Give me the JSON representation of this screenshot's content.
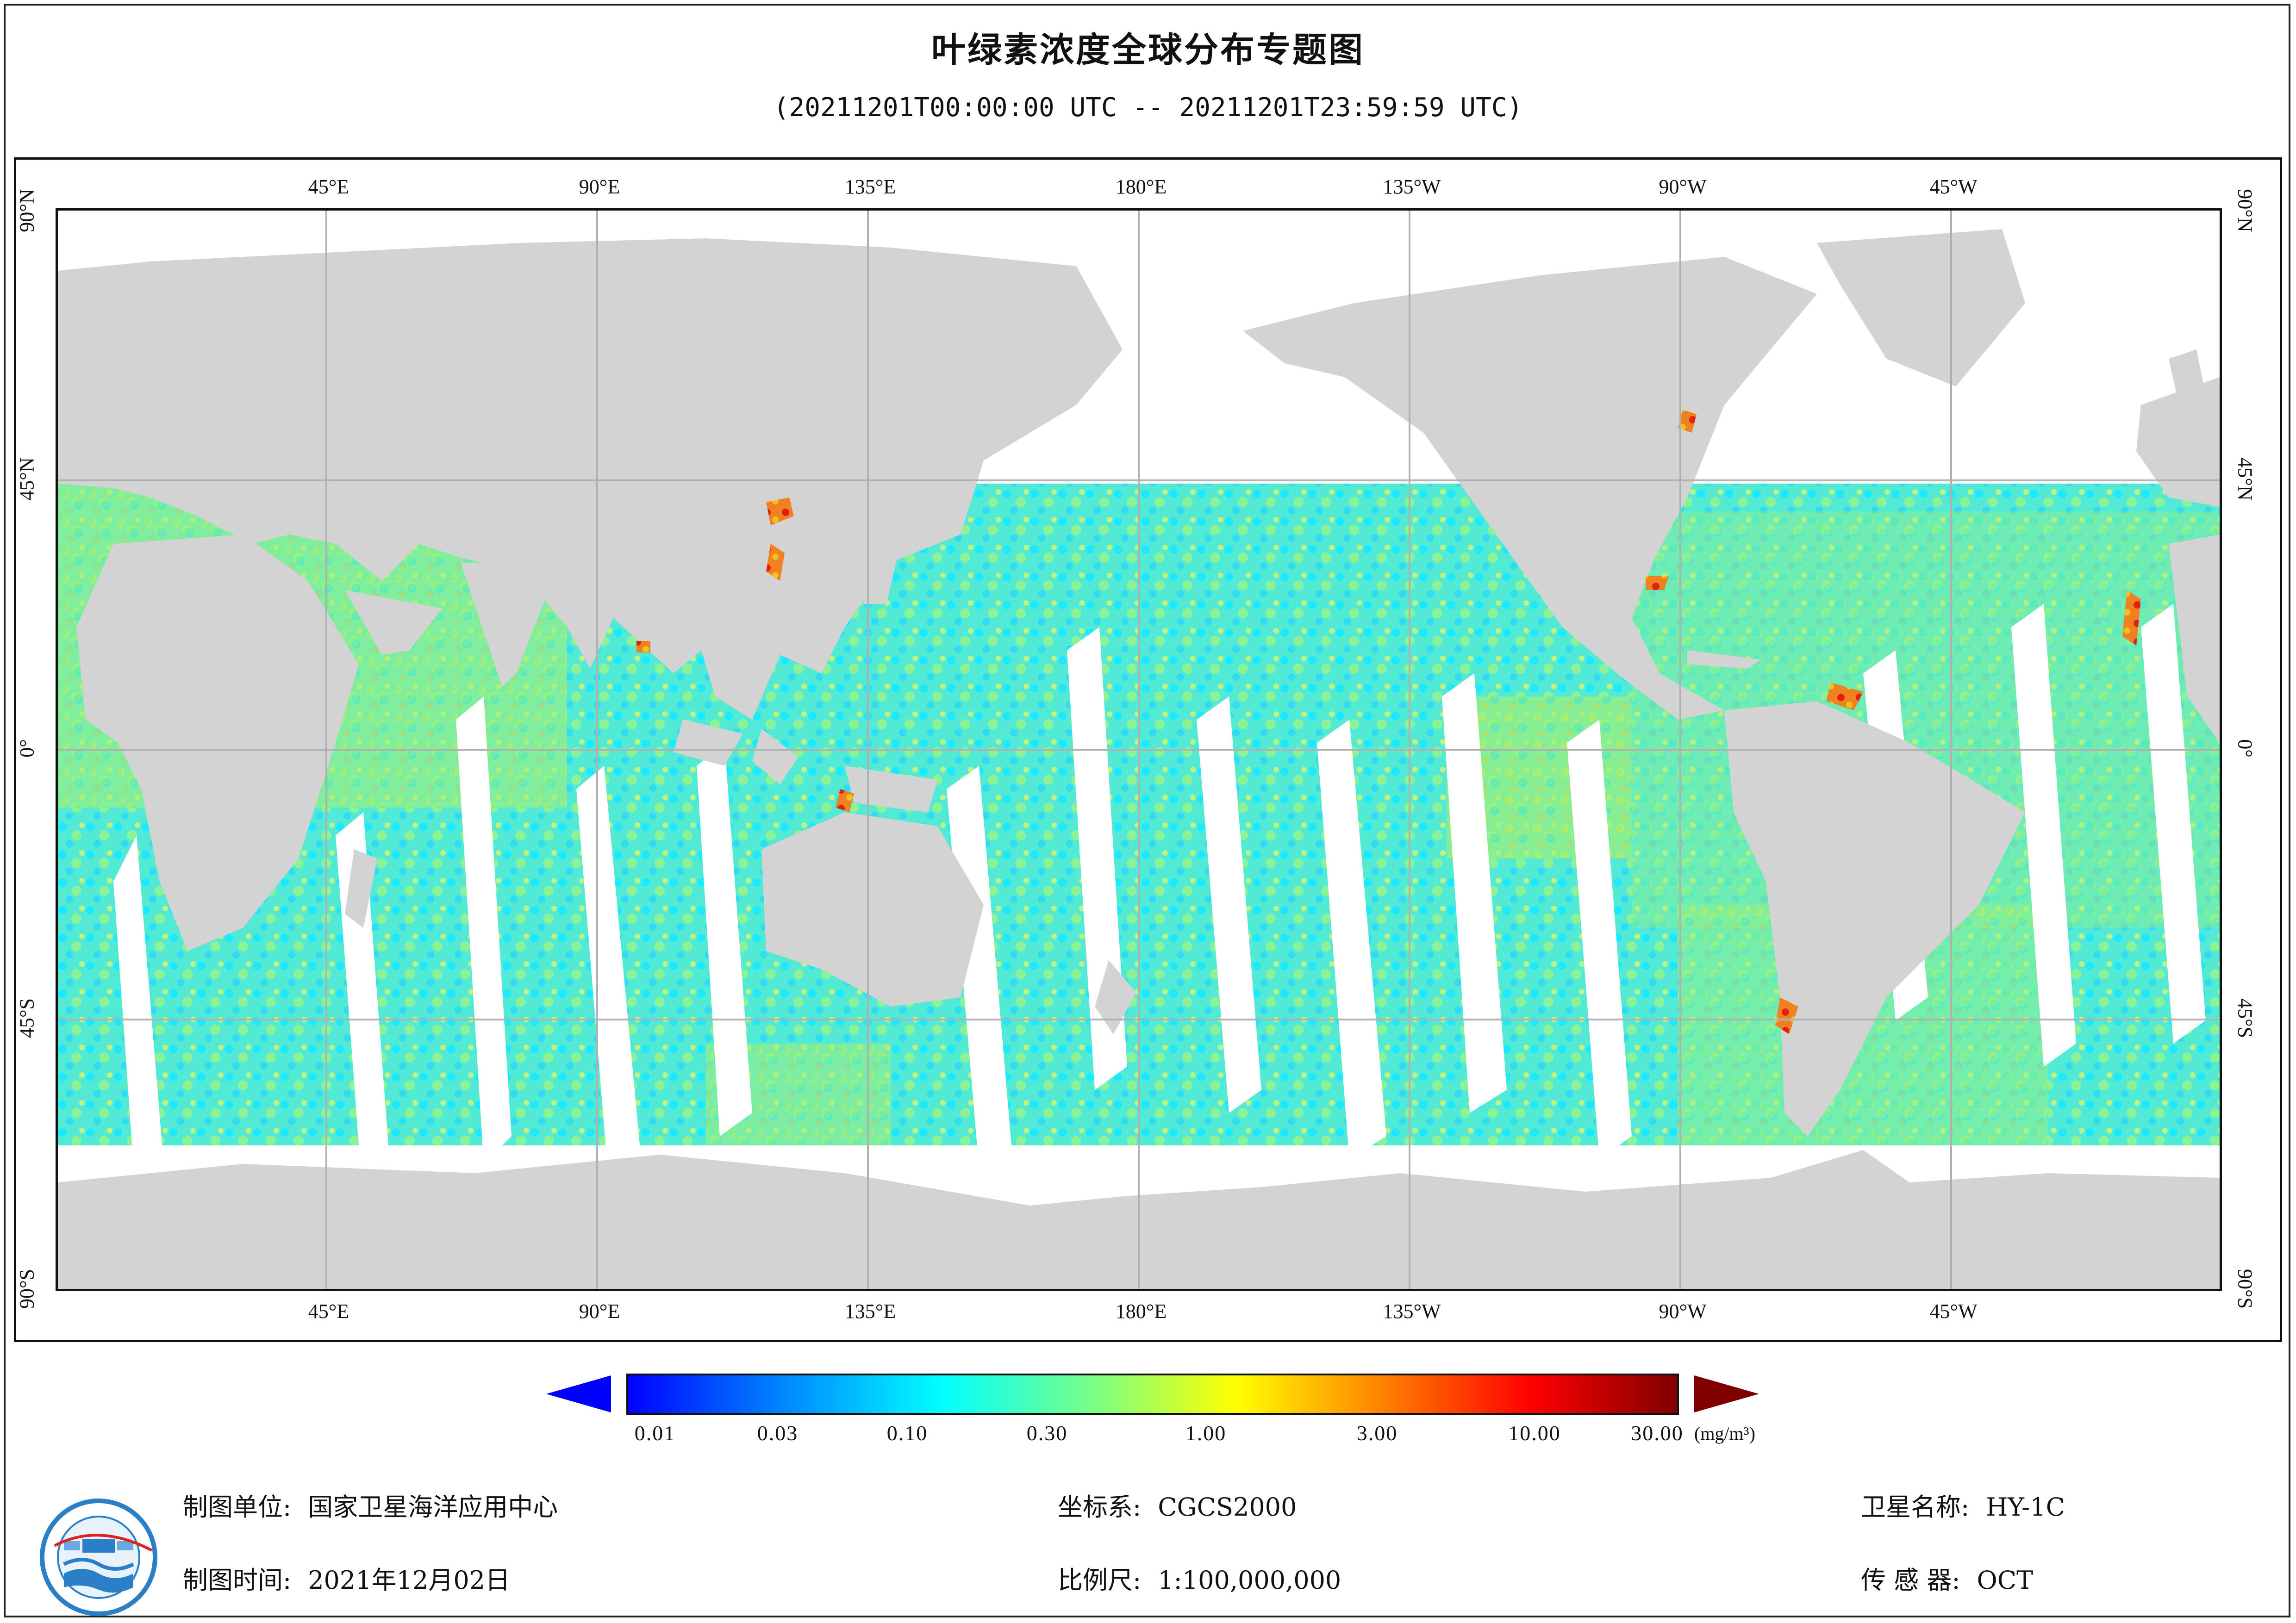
{
  "title": "叶绿素浓度全球分布专题图",
  "subtitle": "(20211201T00:00:00 UTC -- 20211201T23:59:59 UTC)",
  "map": {
    "longitude_ticks_top": [
      "45°E",
      "90°E",
      "135°E",
      "180°E",
      "135°W",
      "90°W",
      "45°W"
    ],
    "longitude_ticks_bottom": [
      "45°E",
      "90°E",
      "135°E",
      "180°E",
      "135°W",
      "90°W",
      "45°W"
    ],
    "latitude_ticks_left": [
      "90°N",
      "45°N",
      "0°",
      "45°S",
      "90°S"
    ],
    "latitude_ticks_right": [
      "90°N",
      "45°N",
      "0°",
      "45°S",
      "90°S"
    ],
    "central_meridian": "180°",
    "land_color": "#d3d3d3",
    "ocean_nodata_color": "#ffffff",
    "grid_color": "#b0b0b0"
  },
  "colorbar": {
    "scale": "log",
    "tick_labels": [
      "0.01",
      "0.03",
      "0.10",
      "0.30",
      "1.00",
      "3.00",
      "10.00",
      "30.00"
    ],
    "unit_label": "(mg/m³)",
    "colors": [
      "#0000ff",
      "#0080ff",
      "#00ffff",
      "#80ff80",
      "#ffff00",
      "#ff8000",
      "#ff0000",
      "#800000"
    ],
    "under_color": "#0000ff",
    "over_color": "#800000"
  },
  "footer": {
    "mapping_unit_label": "制图单位:",
    "mapping_unit_value": "国家卫星海洋应用中心",
    "mapping_time_label": "制图时间:",
    "mapping_time_value": "2021年12月02日",
    "coord_system_label": "坐标系:",
    "coord_system_value": "CGCS2000",
    "scale_label": "比例尺:",
    "scale_value": "1:100,000,000",
    "satellite_label": "卫星名称:",
    "satellite_value": "HY-1C",
    "sensor_label": "传 感 器:",
    "sensor_value": "OCT"
  }
}
